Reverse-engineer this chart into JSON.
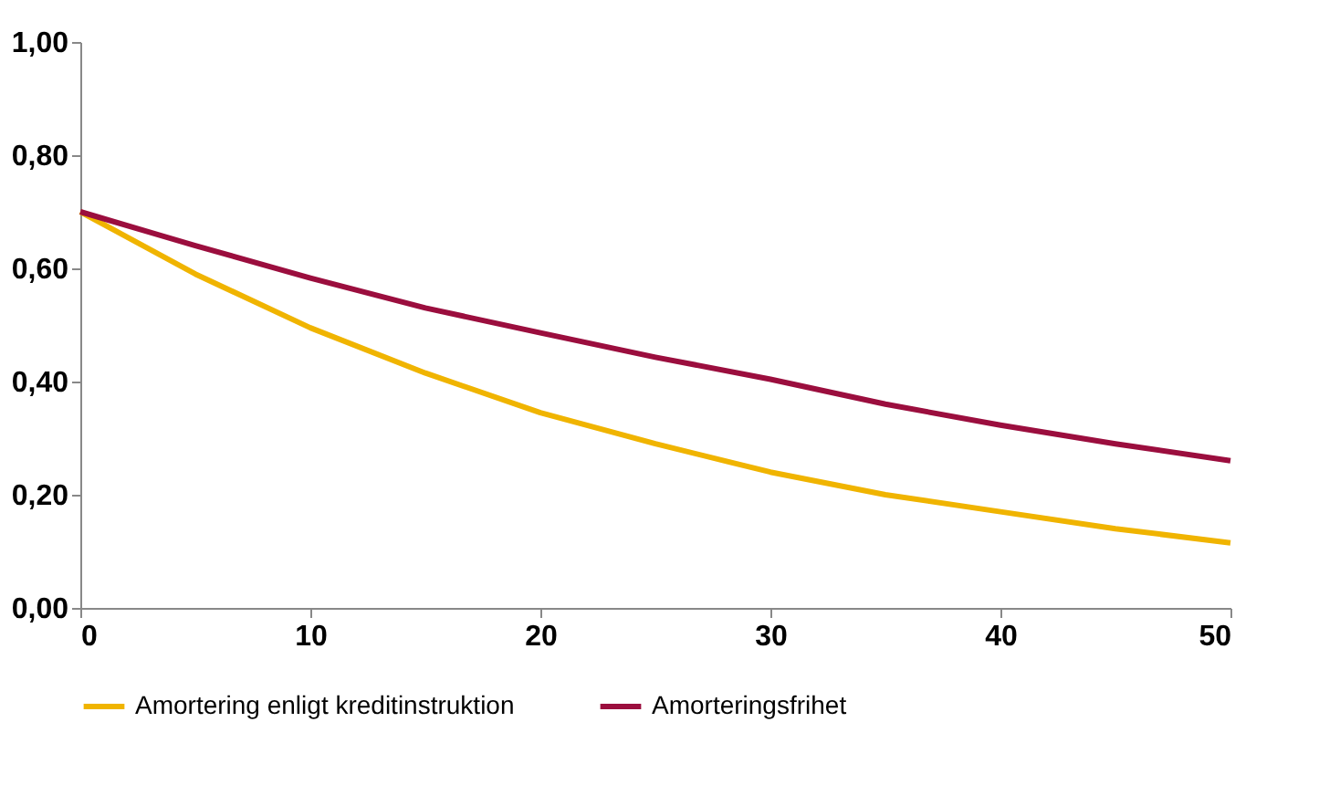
{
  "chart_data": {
    "type": "line",
    "x": [
      0,
      5,
      10,
      15,
      20,
      25,
      30,
      35,
      40,
      45,
      50
    ],
    "series": [
      {
        "name": "Amortering enligt kreditinstruktion",
        "color": "#f0b400",
        "values": [
          0.7,
          0.59,
          0.495,
          0.415,
          0.345,
          0.29,
          0.24,
          0.2,
          0.17,
          0.14,
          0.115
        ]
      },
      {
        "name": "Amorteringsfrihet",
        "color": "#9b0e3e",
        "values": [
          0.7,
          0.64,
          0.583,
          0.53,
          0.486,
          0.443,
          0.404,
          0.36,
          0.323,
          0.29,
          0.26
        ]
      }
    ],
    "xlim": [
      0,
      50
    ],
    "xticks": [
      0,
      10,
      20,
      30,
      40,
      50
    ],
    "ylim": [
      0,
      1
    ],
    "yticks": [
      {
        "value": 0,
        "label": "0,00"
      },
      {
        "value": 0.2,
        "label": "0,20"
      },
      {
        "value": 0.4,
        "label": "0,40"
      },
      {
        "value": 0.6,
        "label": "0,60"
      },
      {
        "value": 0.8,
        "label": "0,80"
      },
      {
        "value": 1,
        "label": "1,00"
      }
    ],
    "grid": false,
    "legend": "bottom",
    "marker": "none",
    "line_style": "solid"
  }
}
